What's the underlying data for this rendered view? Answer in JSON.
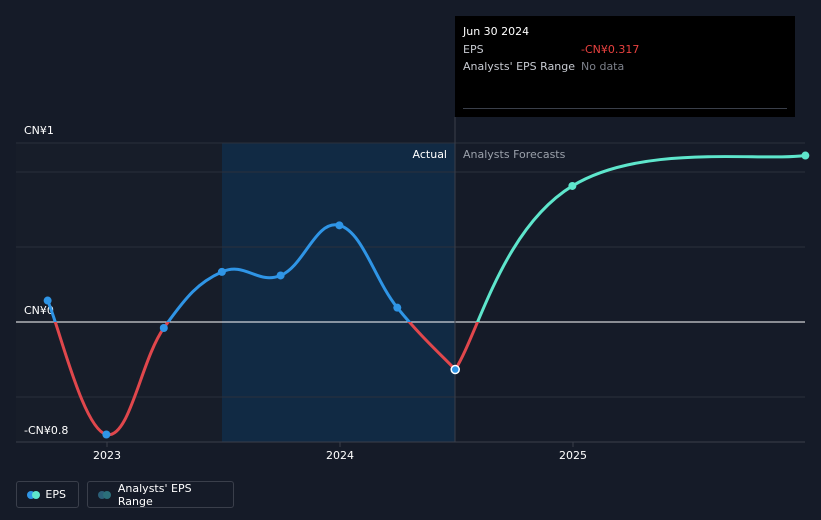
{
  "tooltip": {
    "date": "Jun 30 2024",
    "eps_label": "EPS",
    "eps_value": "-CN¥0.317",
    "range_label": "Analysts' EPS Range",
    "range_value": "No data"
  },
  "legend": {
    "eps_label": "EPS",
    "range_label": "Analysts' EPS Range"
  },
  "colors": {
    "background": "#151b28",
    "actual_blue": "#2f95e6",
    "negative_red": "#e0474c",
    "forecast_teal": "#5ee6cc",
    "range_dot": "#2b6f7a"
  },
  "chart_data": {
    "type": "line",
    "y_tick_labels": [
      "CN¥1",
      "CN¥0",
      "-CN¥0.8"
    ],
    "x_tick_labels": [
      "2023",
      "2024",
      "2025"
    ],
    "section_labels": {
      "actual": "Actual",
      "forecast": "Analysts Forecasts"
    },
    "ylim": [
      -0.8,
      1
    ],
    "highlighted_point": "2024-06-30",
    "series": [
      {
        "name": "EPS",
        "kind": "actual",
        "points": [
          {
            "x": "2022-09-30",
            "y": 0.12
          },
          {
            "x": "2022-12-31",
            "y": -0.75
          },
          {
            "x": "2023-03-31",
            "y": -0.04
          },
          {
            "x": "2023-06-30",
            "y": 0.28
          },
          {
            "x": "2023-09-30",
            "y": 0.26
          },
          {
            "x": "2023-12-31",
            "y": 0.54
          },
          {
            "x": "2024-03-31",
            "y": 0.08
          },
          {
            "x": "2024-06-30",
            "y": -0.317
          }
        ]
      },
      {
        "name": "EPS",
        "kind": "forecast",
        "points": [
          {
            "x": "2024-06-30",
            "y": -0.317
          },
          {
            "x": "2024-12-31",
            "y": 0.76
          },
          {
            "x": "2025-12-31",
            "y": 0.93
          }
        ]
      }
    ]
  }
}
